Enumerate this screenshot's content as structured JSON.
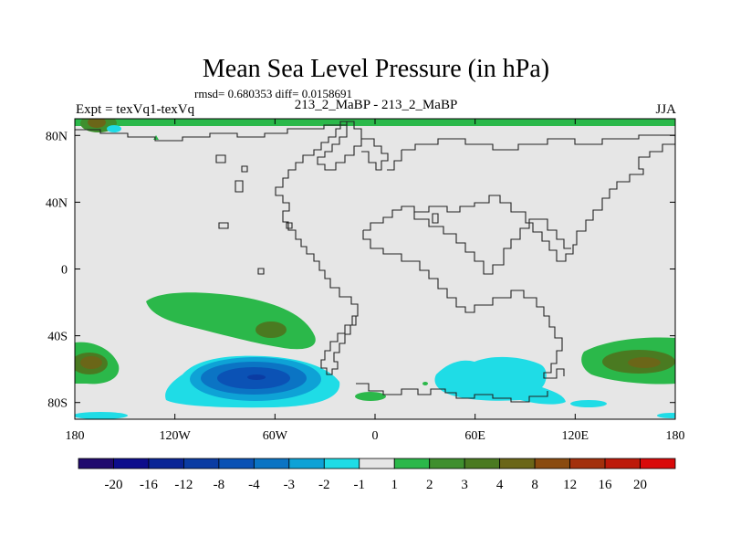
{
  "chart_data": {
    "type": "heatmap",
    "title": "Mean Sea Level Pressure (in hPa)",
    "stats": "rmsd= 0.680353 diff= 0.0158691",
    "experiment": "Expt = texVq1-texVq",
    "subtitle": "213_2_MaBP - 213_2_MaBP",
    "season": "JJA",
    "x_ticks": [
      "180",
      "120W",
      "60W",
      "0",
      "60E",
      "120E",
      "180"
    ],
    "x_tick_values": [
      -180,
      -120,
      -60,
      0,
      60,
      120,
      180
    ],
    "y_ticks": [
      "80N",
      "40N",
      "0",
      "40S",
      "80S"
    ],
    "y_tick_values": [
      80,
      40,
      0,
      -40,
      -80
    ],
    "xlim": [
      -180,
      180
    ],
    "ylim": [
      -90,
      90
    ],
    "colorbar": {
      "labels": [
        "-20",
        "-16",
        "-12",
        "-8",
        "-4",
        "-3",
        "-2",
        "-1",
        "1",
        "2",
        "3",
        "4",
        "8",
        "12",
        "16",
        "20"
      ],
      "colors": [
        "#210a6e",
        "#0d0d8c",
        "#0a2596",
        "#0b3ca3",
        "#0b52b5",
        "#0b74c4",
        "#0ea2d6",
        "#1fdce6",
        "#e6e6e6",
        "#2bb84a",
        "#3f8f2e",
        "#4a7a21",
        "#6b6618",
        "#8a4b0f",
        "#a3300c",
        "#bd1a0a",
        "#d90a0a"
      ]
    },
    "anomalies": [
      {
        "name": "Arctic positive",
        "lon": -160,
        "lat": 86,
        "value": 8
      },
      {
        "name": "South Pacific positive",
        "lon": -95,
        "lat": -35,
        "value": 2
      },
      {
        "name": "South Pacific positive core",
        "lon": -75,
        "lat": -38,
        "value": 3
      },
      {
        "name": "Southern Ocean 180W positive",
        "lon": -170,
        "lat": -60,
        "value": 3
      },
      {
        "name": "Southern Ocean 150E positive",
        "lon": 155,
        "lat": -57,
        "value": 3
      },
      {
        "name": "Amundsen Sea negative",
        "lon": -65,
        "lat": -65,
        "value": -4
      },
      {
        "name": "Indian Ocean sector negative",
        "lon": 75,
        "lat": -62,
        "value": -1
      },
      {
        "name": "South Atlantic positive",
        "lon": -2,
        "lat": -76,
        "value": 2
      }
    ]
  }
}
